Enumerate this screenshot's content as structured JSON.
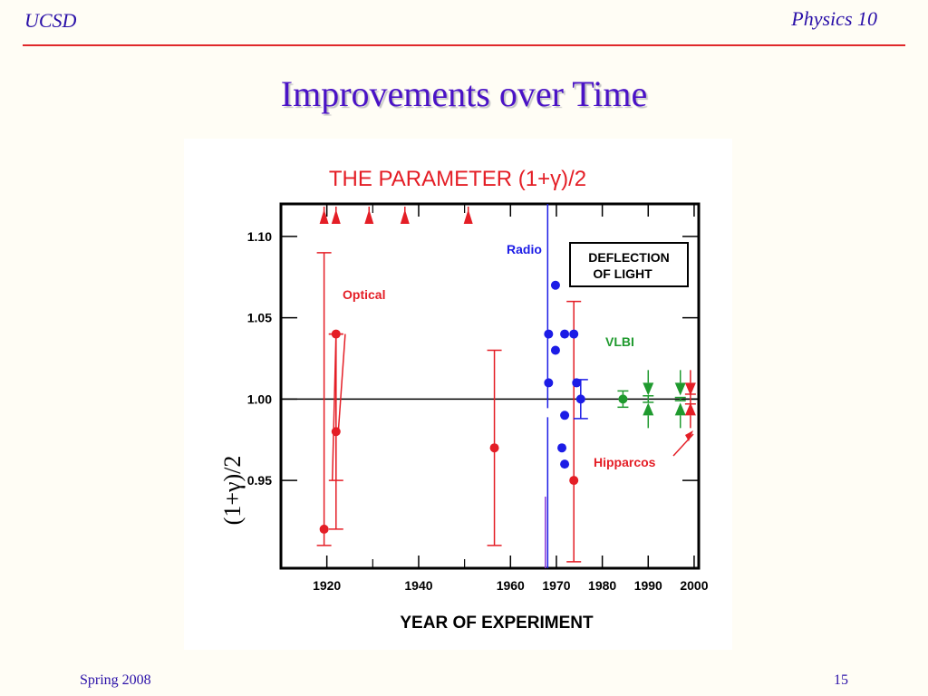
{
  "slide": {
    "header_left": "UCSD",
    "header_right": "Physics 10",
    "title": "Improvements over Time",
    "footer_left": "Spring 2008",
    "footer_right": "15",
    "colors": {
      "heading": "#2a10a8",
      "title": "#4a12c6",
      "rule": "#e0282a"
    }
  },
  "chart_data": {
    "type": "scatter",
    "title": "THE PARAMETER (1+γ)/2",
    "xlabel": "YEAR OF EXPERIMENT",
    "ylabel": "(1+γ)/2",
    "xlim": [
      1910,
      2001
    ],
    "ylim": [
      0.896,
      1.12
    ],
    "xticks": [
      1920,
      1940,
      1960,
      1970,
      1980,
      1990,
      2000
    ],
    "xtick_labels": [
      "1920",
      "1940",
      "1960",
      "1970",
      "1980",
      "1990",
      "2000"
    ],
    "yticks": [
      0.95,
      1.0,
      1.05,
      1.1
    ],
    "ytick_labels": [
      "0.95",
      "1.00",
      "1.05",
      "1.10"
    ],
    "reference_line": 1.0,
    "legend_box": [
      "DEFLECTION",
      "OF LIGHT"
    ],
    "annotations": [
      "Optical",
      "Radio",
      "VLBI",
      "Hipparcos"
    ],
    "series": [
      {
        "name": "Optical",
        "color": "#e41e26",
        "points": [
          {
            "x": 1919.4,
            "y": 0.92,
            "lo": 0.91,
            "hi": 1.09
          },
          {
            "x": 1922.0,
            "y": 1.04,
            "lo": 0.95,
            "hi": 1.04
          },
          {
            "x": 1922.0,
            "y": 0.98,
            "lo": 0.92,
            "hi": 1.04
          },
          {
            "x": 1956.5,
            "y": 0.97,
            "lo": 0.91,
            "hi": 1.03
          },
          {
            "x": 1973.8,
            "y": 0.95,
            "lo": 0.9,
            "hi": 1.06
          }
        ],
        "lower_limit_arrows": [
          1919.4,
          1922.0,
          1929.2,
          1937.0,
          1950.8
        ]
      },
      {
        "name": "Radio",
        "color": "#1c1ce6",
        "points": [
          {
            "x": 1968.3,
            "y": 1.04
          },
          {
            "x": 1968.3,
            "y": 1.01
          },
          {
            "x": 1969.8,
            "y": 1.07
          },
          {
            "x": 1969.8,
            "y": 1.03
          },
          {
            "x": 1971.8,
            "y": 1.04
          },
          {
            "x": 1971.8,
            "y": 0.99
          },
          {
            "x": 1971.2,
            "y": 0.97
          },
          {
            "x": 1971.8,
            "y": 0.96
          },
          {
            "x": 1973.8,
            "y": 1.04
          },
          {
            "x": 1974.4,
            "y": 1.01
          },
          {
            "x": 1975.3,
            "y": 1.0,
            "lo": 0.988,
            "hi": 1.012
          }
        ]
      },
      {
        "name": "VLBI",
        "color": "#1f9a2e",
        "points": [
          {
            "x": 1984.5,
            "y": 1.0,
            "lo": 0.995,
            "hi": 1.005
          },
          {
            "x": 1990.0,
            "y": 1.0,
            "lo": 0.998,
            "hi": 1.002
          },
          {
            "x": 1997.0,
            "y": 1.0,
            "lo": 0.999,
            "hi": 1.001
          }
        ]
      },
      {
        "name": "Hipparcos",
        "color": "#e41e26",
        "points": [
          {
            "x": 1999.2,
            "y": 1.0,
            "lo": 0.997,
            "hi": 1.003
          }
        ]
      }
    ]
  }
}
